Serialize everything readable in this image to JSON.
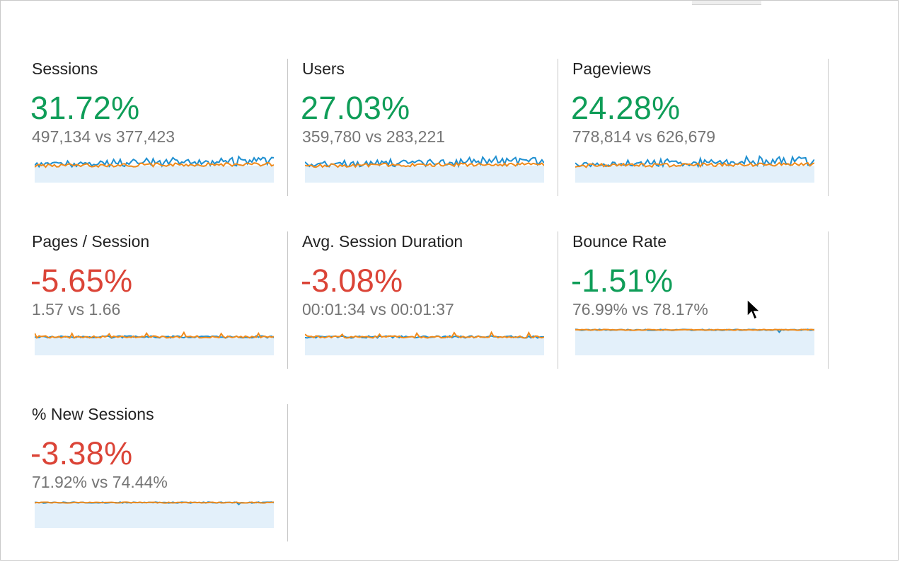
{
  "colors": {
    "positive": "#0f9d58",
    "negative": "#db4437",
    "series_current": "#1e8fd0",
    "series_previous": "#f08a1a",
    "spark_fill": "#e3f0fa"
  },
  "metrics": [
    {
      "label": "Sessions",
      "change": "31.72%",
      "trend": "positive",
      "comparison": "497,134 vs 377,423",
      "spark": "volatile"
    },
    {
      "label": "Users",
      "change": "27.03%",
      "trend": "positive",
      "comparison": "359,780 vs 283,221",
      "spark": "volatile"
    },
    {
      "label": "Pageviews",
      "change": "24.28%",
      "trend": "positive",
      "comparison": "778,814 vs 626,679",
      "spark": "volatile"
    },
    {
      "label": "Pages / Session",
      "change": "-5.65%",
      "trend": "negative",
      "comparison": "1.57 vs 1.66",
      "spark": "flat"
    },
    {
      "label": "Avg. Session Duration",
      "change": "-3.08%",
      "trend": "negative",
      "comparison": "00:01:34 vs 00:01:37",
      "spark": "flat"
    },
    {
      "label": "Bounce Rate",
      "change": "-1.51%",
      "trend": "positive",
      "comparison": "76.99% vs 78.17%",
      "spark": "top"
    },
    {
      "label": "% New Sessions",
      "change": "-3.38%",
      "trend": "negative",
      "comparison": "71.92% vs 74.44%",
      "spark": "top"
    }
  ],
  "cursor": {
    "icon": "mouse-pointer-icon"
  }
}
